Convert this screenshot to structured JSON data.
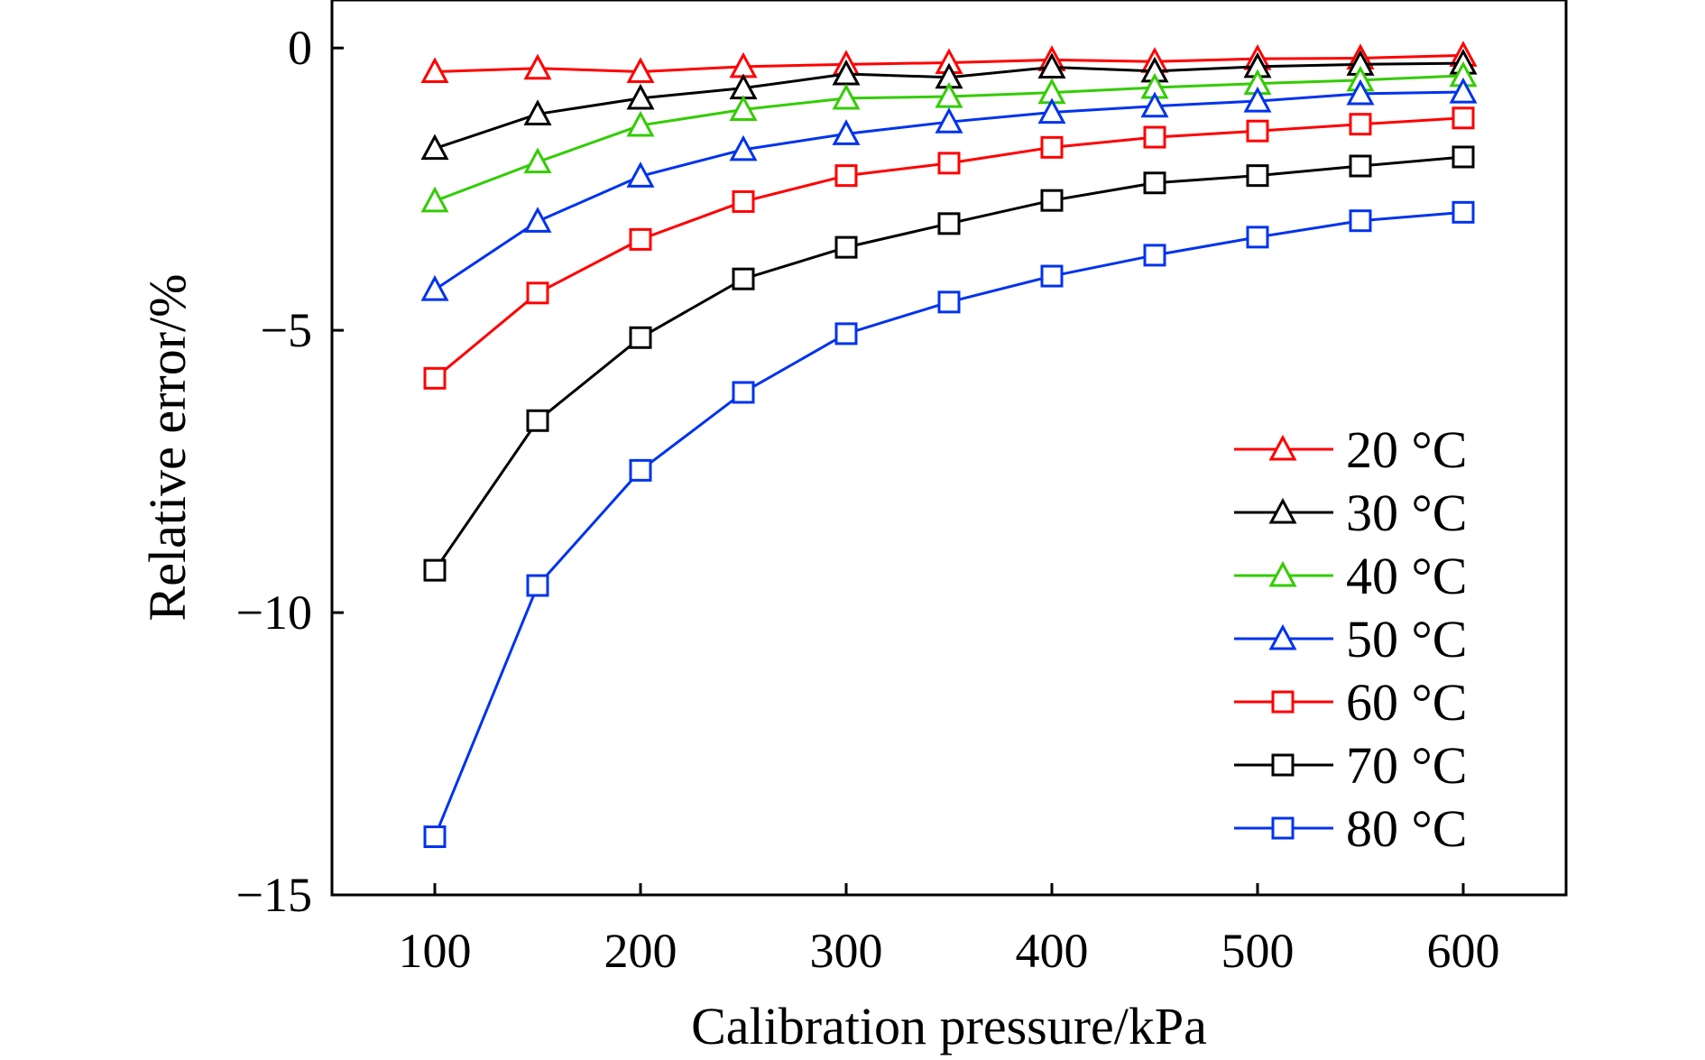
{
  "chart_data": {
    "type": "line",
    "xlabel": "Calibration pressure/kPa",
    "ylabel": "Relative error/%",
    "x": [
      100,
      150,
      200,
      250,
      300,
      350,
      400,
      450,
      500,
      550,
      600
    ],
    "xlim": [
      50,
      650
    ],
    "ylim": [
      -15,
      0.85
    ],
    "xticks": [
      100,
      200,
      300,
      400,
      500,
      600
    ],
    "xtick_labels": [
      "100",
      "200",
      "300",
      "400",
      "500",
      "600"
    ],
    "yticks": [
      0,
      -5,
      -10,
      -15
    ],
    "ytick_labels": [
      "0",
      "−5",
      "−10",
      "−15"
    ],
    "grid": false,
    "legend_position": "bottom-right",
    "series": [
      {
        "name": "20 °C",
        "marker": "triangle",
        "color": "#ff0000",
        "values": [
          -0.42,
          -0.36,
          -0.42,
          -0.33,
          -0.29,
          -0.26,
          -0.21,
          -0.24,
          -0.19,
          -0.18,
          -0.13
        ]
      },
      {
        "name": "30 °C",
        "marker": "triangle",
        "color": "#000000",
        "values": [
          -1.78,
          -1.17,
          -0.89,
          -0.71,
          -0.46,
          -0.52,
          -0.34,
          -0.41,
          -0.33,
          -0.29,
          -0.27
        ]
      },
      {
        "name": "40 °C",
        "marker": "triangle",
        "color": "#33cc00",
        "values": [
          -2.71,
          -2.02,
          -1.37,
          -1.09,
          -0.89,
          -0.86,
          -0.79,
          -0.7,
          -0.63,
          -0.57,
          -0.49
        ]
      },
      {
        "name": "50 °C",
        "marker": "triangle",
        "color": "#0033ee",
        "values": [
          -4.28,
          -3.07,
          -2.27,
          -1.8,
          -1.52,
          -1.31,
          -1.14,
          -1.03,
          -0.94,
          -0.81,
          -0.78
        ]
      },
      {
        "name": "60 °C",
        "marker": "square",
        "color": "#ff0000",
        "values": [
          -5.85,
          -4.34,
          -3.39,
          -2.72,
          -2.26,
          -2.04,
          -1.76,
          -1.58,
          -1.47,
          -1.35,
          -1.24
        ]
      },
      {
        "name": "70 °C",
        "marker": "square",
        "color": "#000000",
        "values": [
          -9.25,
          -6.6,
          -5.13,
          -4.09,
          -3.53,
          -3.11,
          -2.7,
          -2.39,
          -2.26,
          -2.09,
          -1.93
        ]
      },
      {
        "name": "80 °C",
        "marker": "square",
        "color": "#0033ee",
        "values": [
          -13.97,
          -9.52,
          -7.48,
          -6.1,
          -5.06,
          -4.5,
          -4.04,
          -3.67,
          -3.35,
          -3.06,
          -2.91
        ]
      }
    ]
  }
}
